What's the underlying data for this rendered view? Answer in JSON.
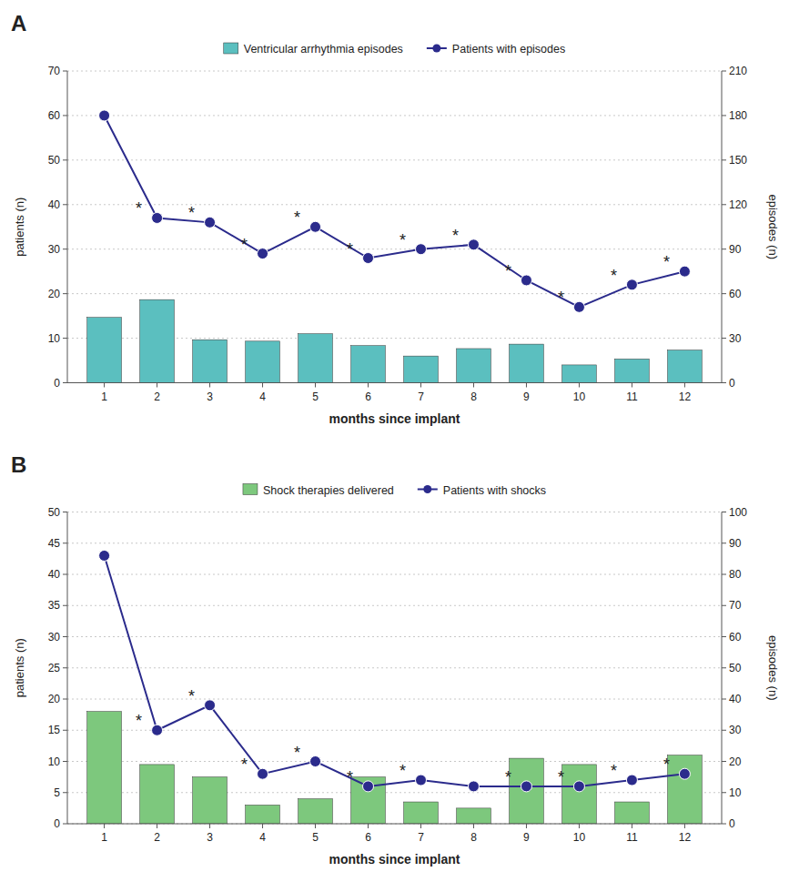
{
  "chart_data": [
    {
      "type": "bar",
      "title": "A",
      "x": [
        1,
        2,
        3,
        4,
        5,
        6,
        7,
        8,
        9,
        10,
        11,
        12
      ],
      "xlim": [
        0.3,
        12.7
      ],
      "xticks": [
        1,
        2,
        3,
        4,
        5,
        6,
        7,
        8,
        9,
        10,
        11,
        12
      ],
      "xlabel": "months since implant",
      "ylabel": "patients (n)",
      "y2label": "episodes (n)",
      "ylim": [
        0,
        70
      ],
      "yticks": [
        0,
        10,
        20,
        30,
        40,
        50,
        60,
        70
      ],
      "y2lim": [
        0,
        210
      ],
      "y2ticks": [
        0,
        30,
        60,
        90,
        120,
        150,
        180,
        210
      ],
      "grid": true,
      "legend": "top",
      "series": [
        {
          "name": "Ventricular arrhythmia episodes",
          "type": "bar",
          "axis": "y2",
          "color": "#5BBFBF",
          "values": [
            44,
            56,
            29,
            28,
            33,
            25,
            18,
            23,
            26,
            12,
            16,
            22
          ]
        },
        {
          "name": "Patients with episodes",
          "type": "line",
          "color": "#2B2B8C",
          "marker": "circle",
          "line_style": "solid",
          "values": [
            60,
            37,
            36,
            29,
            35,
            28,
            30,
            31,
            23,
            17,
            22,
            25
          ]
        }
      ],
      "annotations": [
        {
          "text": "*",
          "x": 2,
          "y": 37
        },
        {
          "text": "*",
          "x": 3,
          "y": 36
        },
        {
          "text": "*",
          "x": 4,
          "y": 29
        },
        {
          "text": "*",
          "x": 5,
          "y": 35
        },
        {
          "text": "*",
          "x": 6,
          "y": 28
        },
        {
          "text": "*",
          "x": 7,
          "y": 30
        },
        {
          "text": "*",
          "x": 8,
          "y": 31
        },
        {
          "text": "*",
          "x": 9,
          "y": 23
        },
        {
          "text": "*",
          "x": 10,
          "y": 17
        },
        {
          "text": "*",
          "x": 11,
          "y": 22
        },
        {
          "text": "*",
          "x": 12,
          "y": 25
        }
      ]
    },
    {
      "type": "bar",
      "title": "B",
      "x": [
        1,
        2,
        3,
        4,
        5,
        6,
        7,
        8,
        9,
        10,
        11,
        12
      ],
      "xlim": [
        0.3,
        12.7
      ],
      "xticks": [
        1,
        2,
        3,
        4,
        5,
        6,
        7,
        8,
        9,
        10,
        11,
        12
      ],
      "xlabel": "months since implant",
      "ylabel": "patients (n)",
      "y2label": "episodes (n)",
      "ylim": [
        0,
        50
      ],
      "yticks": [
        0,
        5,
        10,
        15,
        20,
        25,
        30,
        35,
        40,
        45,
        50
      ],
      "y2lim": [
        0,
        100
      ],
      "y2ticks": [
        0,
        10,
        20,
        30,
        40,
        50,
        60,
        70,
        80,
        90,
        100
      ],
      "grid": true,
      "legend": "top",
      "series": [
        {
          "name": "Shock therapies delivered",
          "type": "bar",
          "axis": "y2",
          "color": "#7DC87D",
          "values": [
            36,
            19,
            15,
            6,
            8,
            15,
            7,
            5,
            21,
            19,
            7,
            22
          ]
        },
        {
          "name": "Patients with shocks",
          "type": "line",
          "color": "#2B2B8C",
          "marker": "circle",
          "line_style": "solid",
          "values": [
            43,
            15,
            19,
            8,
            10,
            6,
            7,
            6,
            6,
            6,
            7,
            8
          ]
        }
      ],
      "annotations": [
        {
          "text": "*",
          "x": 2,
          "y": 15
        },
        {
          "text": "*",
          "x": 3,
          "y": 19
        },
        {
          "text": "*",
          "x": 4,
          "y": 8
        },
        {
          "text": "*",
          "x": 5,
          "y": 10
        },
        {
          "text": "*",
          "x": 6,
          "y": 6
        },
        {
          "text": "*",
          "x": 7,
          "y": 7
        },
        {
          "text": "*",
          "x": 9,
          "y": 6
        },
        {
          "text": "*",
          "x": 10,
          "y": 6
        },
        {
          "text": "*",
          "x": 11,
          "y": 7
        },
        {
          "text": "*",
          "x": 12,
          "y": 8
        }
      ]
    }
  ]
}
